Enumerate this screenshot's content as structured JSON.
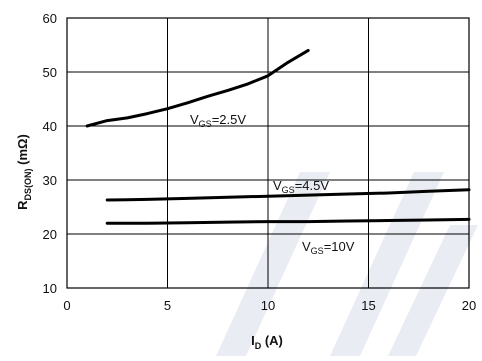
{
  "chart_data": {
    "type": "line",
    "xlabel": {
      "main": "I",
      "sub": "D",
      "rest": " (A)"
    },
    "ylabel": {
      "main": "R",
      "sub": "DS(ON)",
      "rest": " (mΩ)"
    },
    "xlim": [
      0,
      20
    ],
    "ylim": [
      10,
      60
    ],
    "xticks": [
      0,
      5,
      10,
      15,
      20
    ],
    "yticks": [
      10,
      20,
      30,
      40,
      50,
      60
    ],
    "grid": true,
    "series": [
      {
        "name": "VGS=2.5V",
        "label": {
          "main": "V",
          "sub": "GS",
          "rest": "=2.5V"
        },
        "x": [
          1,
          2,
          3,
          4,
          5,
          6,
          7,
          8,
          9,
          10,
          11,
          12
        ],
        "y": [
          40,
          41,
          41.5,
          42.3,
          43.2,
          44.3,
          45.5,
          46.6,
          47.8,
          49.3,
          51.8,
          54
        ]
      },
      {
        "name": "VGS=4.5V",
        "label": {
          "main": "V",
          "sub": "GS",
          "rest": "=4.5V"
        },
        "x": [
          2,
          4,
          6,
          8,
          10,
          12,
          14,
          16,
          18,
          20
        ],
        "y": [
          26.3,
          26.4,
          26.6,
          26.8,
          27,
          27.2,
          27.4,
          27.6,
          27.9,
          28.2
        ]
      },
      {
        "name": "VGS=10V",
        "label": {
          "main": "V",
          "sub": "GS",
          "rest": "=10V"
        },
        "x": [
          2,
          4,
          6,
          8,
          10,
          12,
          14,
          16,
          18,
          20
        ],
        "y": [
          22,
          22,
          22.1,
          22.2,
          22.3,
          22.3,
          22.4,
          22.5,
          22.6,
          22.7
        ]
      }
    ]
  }
}
